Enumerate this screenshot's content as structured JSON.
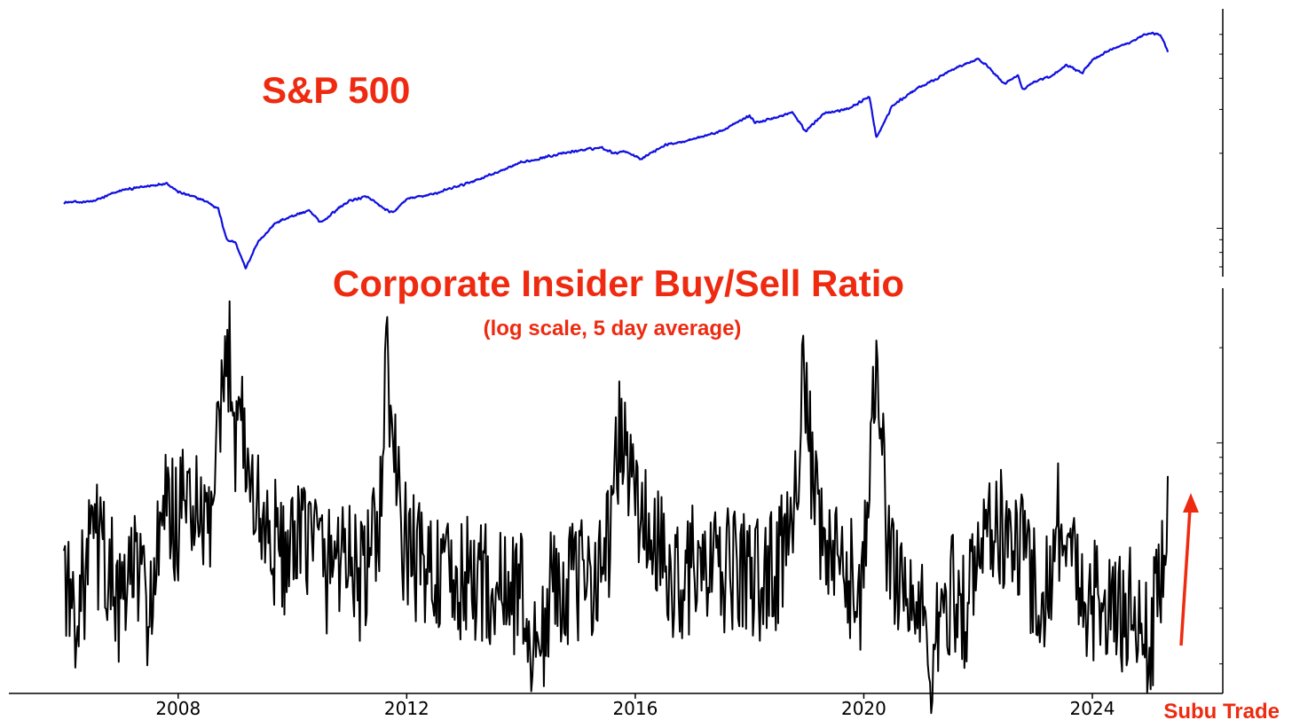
{
  "chart_data": [
    {
      "type": "line",
      "title": "S&P 500",
      "yscale": "log",
      "ylim": [
        650,
        7000
      ],
      "color": "#1010e0",
      "grid": false,
      "x_range": [
        2006.0,
        2025.32
      ],
      "series": [
        {
          "x": [
            2006.0,
            2006.5,
            2007.0,
            2007.5,
            2007.8,
            2008.0,
            2008.3,
            2008.5,
            2008.7,
            2008.85,
            2009.0,
            2009.18,
            2009.4,
            2009.7,
            2010.0,
            2010.3,
            2010.5,
            2010.8,
            2011.0,
            2011.3,
            2011.6,
            2011.75,
            2012.0,
            2012.5,
            2013.0,
            2013.5,
            2014.0,
            2014.5,
            2015.0,
            2015.4,
            2015.65,
            2015.8,
            2016.1,
            2016.5,
            2017.0,
            2017.5,
            2018.0,
            2018.1,
            2018.5,
            2018.75,
            2018.98,
            2019.3,
            2019.7,
            2020.1,
            2020.22,
            2020.5,
            2020.9,
            2021.2,
            2021.6,
            2021.99,
            2022.2,
            2022.45,
            2022.7,
            2022.78,
            2023.0,
            2023.3,
            2023.55,
            2023.82,
            2024.0,
            2024.3,
            2024.6,
            2024.9,
            2025.1,
            2025.2,
            2025.27,
            2025.32
          ],
          "y": [
            1270,
            1280,
            1420,
            1480,
            1520,
            1400,
            1330,
            1280,
            1200,
            900,
            880,
            690,
            880,
            1050,
            1120,
            1180,
            1050,
            1200,
            1290,
            1340,
            1200,
            1150,
            1310,
            1380,
            1500,
            1650,
            1830,
            1950,
            2050,
            2110,
            2000,
            2050,
            1900,
            2150,
            2280,
            2450,
            2830,
            2650,
            2800,
            2920,
            2450,
            2900,
            3000,
            3370,
            2300,
            3100,
            3600,
            3900,
            4400,
            4770,
            4400,
            3800,
            4100,
            3600,
            3900,
            4100,
            4550,
            4200,
            4750,
            5200,
            5500,
            5950,
            6050,
            5900,
            5500,
            5100
          ]
        }
      ]
    },
    {
      "type": "line",
      "title": "Corporate Insider Buy/Sell Ratio",
      "subtitle": "(log scale, 5 day average)",
      "yscale": "log",
      "color": "#000000",
      "grid": false,
      "x_range": [
        2006.0,
        2025.32
      ],
      "xticks": [
        "2008",
        "2012",
        "2016",
        "2020",
        "2024"
      ],
      "series": [
        {
          "x": [
            2006.0,
            2006.1,
            2006.3,
            2006.5,
            2006.8,
            2007.0,
            2007.2,
            2007.5,
            2007.8,
            2008.0,
            2008.2,
            2008.4,
            2008.6,
            2008.8,
            2008.9,
            2009.0,
            2009.1,
            2009.2,
            2009.4,
            2009.6,
            2010.0,
            2010.3,
            2010.6,
            2010.9,
            2011.2,
            2011.5,
            2011.65,
            2011.9,
            2012.2,
            2012.5,
            2012.8,
            2013.2,
            2013.6,
            2014.0,
            2014.25,
            2014.6,
            2015.0,
            2015.5,
            2015.75,
            2016.05,
            2016.3,
            2016.6,
            2017.0,
            2017.4,
            2017.8,
            2018.2,
            2018.6,
            2018.8,
            2018.95,
            2019.2,
            2019.6,
            2019.95,
            2020.1,
            2020.22,
            2020.4,
            2020.7,
            2021.0,
            2021.2,
            2021.5,
            2021.8,
            2022.1,
            2022.3,
            2022.5,
            2022.7,
            2023.0,
            2023.2,
            2023.4,
            2023.6,
            2023.9,
            2024.2,
            2024.5,
            2024.7,
            2024.85,
            2025.0,
            2025.15,
            2025.32
          ],
          "y": [
            0.45,
            0.3,
            0.32,
            0.5,
            0.4,
            0.28,
            0.42,
            0.3,
            0.62,
            0.55,
            0.7,
            0.5,
            0.6,
            1.4,
            2.0,
            1.1,
            1.5,
            0.8,
            0.6,
            0.5,
            0.42,
            0.55,
            0.4,
            0.48,
            0.36,
            0.5,
            1.8,
            0.5,
            0.42,
            0.4,
            0.34,
            0.38,
            0.33,
            0.35,
            0.2,
            0.38,
            0.35,
            0.45,
            1.1,
            0.6,
            0.5,
            0.36,
            0.4,
            0.38,
            0.4,
            0.36,
            0.44,
            0.8,
            1.5,
            0.5,
            0.38,
            0.35,
            0.6,
            2.2,
            0.5,
            0.35,
            0.28,
            0.2,
            0.34,
            0.3,
            0.5,
            0.6,
            0.45,
            0.5,
            0.36,
            0.33,
            0.6,
            0.42,
            0.34,
            0.3,
            0.28,
            0.32,
            0.25,
            0.22,
            0.35,
            0.62
          ]
        }
      ]
    }
  ],
  "annotations": {
    "sp500_label": "S&P 500",
    "insider_title": "Corporate Insider Buy/Sell Ratio",
    "insider_subtitle": "(log scale, 5 day average)",
    "source": "Subu Trade",
    "arrow_color": "#ee2a10"
  }
}
